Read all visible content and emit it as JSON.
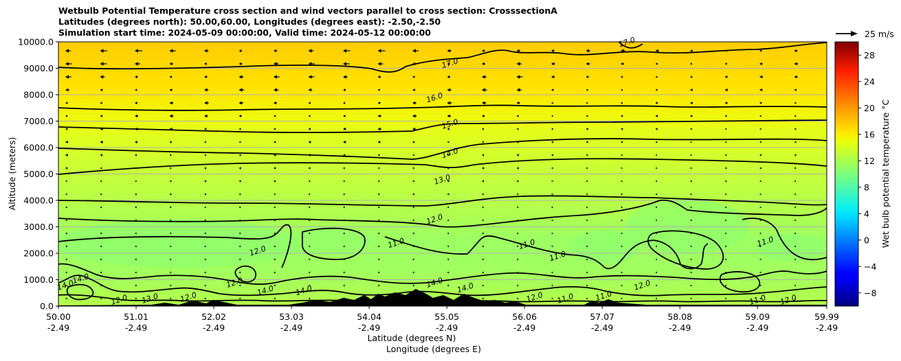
{
  "chart_data": {
    "type": "heatmap",
    "title_lines": [
      "Wetbulb Potential Temperature cross section and wind vectors parallel to cross section: CrosssectionA",
      "Latitudes (degrees north): 50.00,60.00, Longitudes (degrees east): -2.50,-2.50",
      "Simulation start time: 2024-05-09 00:00:00, Valid time: 2024-05-12 00:00:00"
    ],
    "ylabel": "Altitude (meters)",
    "xlabel_lines": [
      "Latitude (degrees N)",
      "Longitude (degrees E)"
    ],
    "x_range": [
      50.0,
      59.99
    ],
    "ylim": [
      0,
      10000
    ],
    "y_ticks": [
      "0.0",
      "1000.0",
      "2000.0",
      "3000.0",
      "4000.0",
      "5000.0",
      "6000.0",
      "7000.0",
      "8000.0",
      "9000.0",
      "10000.0"
    ],
    "x_ticks": [
      {
        "lat": "50.00",
        "lon": "-2.49"
      },
      {
        "lat": "51.01",
        "lon": "-2.49"
      },
      {
        "lat": "52.02",
        "lon": "-2.49"
      },
      {
        "lat": "53.03",
        "lon": "-2.49"
      },
      {
        "lat": "54.04",
        "lon": "-2.49"
      },
      {
        "lat": "55.05",
        "lon": "-2.49"
      },
      {
        "lat": "56.06",
        "lon": "-2.49"
      },
      {
        "lat": "57.07",
        "lon": "-2.49"
      },
      {
        "lat": "58.08",
        "lon": "-2.49"
      },
      {
        "lat": "59.09",
        "lon": "-2.49"
      },
      {
        "lat": "59.99",
        "lon": "-2.49"
      }
    ],
    "grid": "horizontal",
    "colorbar": {
      "label": "Wet bulb potential temperature °C",
      "ticks": [
        "−8",
        "−4",
        "0",
        "4",
        "8",
        "12",
        "16",
        "20",
        "24",
        "28"
      ],
      "range": [
        -10,
        30
      ],
      "colormap": "jet"
    },
    "wind_key": {
      "label": "25 m/s",
      "speed": 25
    },
    "contour_levels": [
      11,
      12,
      13,
      14,
      15,
      16,
      17
    ],
    "contour_labels": [
      {
        "text": "17.0",
        "x": 55.1,
        "y": 9100
      },
      {
        "text": "17.0",
        "x": 57.4,
        "y": 9900
      },
      {
        "text": "16.0",
        "x": 54.9,
        "y": 7800
      },
      {
        "text": "15.0",
        "x": 55.1,
        "y": 6800
      },
      {
        "text": "14.0",
        "x": 55.1,
        "y": 5700
      },
      {
        "text": "13.0",
        "x": 55.0,
        "y": 4700
      },
      {
        "text": "12.0",
        "x": 54.9,
        "y": 3200
      },
      {
        "text": "11.0",
        "x": 54.4,
        "y": 2300
      },
      {
        "text": "11.0",
        "x": 56.1,
        "y": 2250
      },
      {
        "text": "11.0",
        "x": 56.5,
        "y": 1800
      },
      {
        "text": "11.0",
        "x": 59.2,
        "y": 2350
      },
      {
        "text": "12.0",
        "x": 52.6,
        "y": 2000
      },
      {
        "text": "12.0",
        "x": 52.3,
        "y": 800
      },
      {
        "text": "14.0",
        "x": 52.7,
        "y": 500
      },
      {
        "text": "14.0",
        "x": 53.2,
        "y": 500
      },
      {
        "text": "14.0",
        "x": 54.9,
        "y": 800
      },
      {
        "text": "14.0",
        "x": 55.3,
        "y": 600
      },
      {
        "text": "12.0",
        "x": 56.2,
        "y": 250
      },
      {
        "text": "11.0",
        "x": 56.6,
        "y": 200
      },
      {
        "text": "12.0",
        "x": 57.6,
        "y": 700
      },
      {
        "text": "11.0",
        "x": 57.1,
        "y": 300
      },
      {
        "text": "12.0",
        "x": 59.5,
        "y": 150
      },
      {
        "text": "11.0",
        "x": 59.1,
        "y": 150
      },
      {
        "text": "14.0",
        "x": 50.1,
        "y": 700
      },
      {
        "text": "14.0",
        "x": 50.3,
        "y": 950
      },
      {
        "text": "12.0",
        "x": 50.8,
        "y": 150
      },
      {
        "text": "13.0",
        "x": 51.2,
        "y": 200
      },
      {
        "text": "12.0",
        "x": 51.7,
        "y": 250
      }
    ]
  }
}
